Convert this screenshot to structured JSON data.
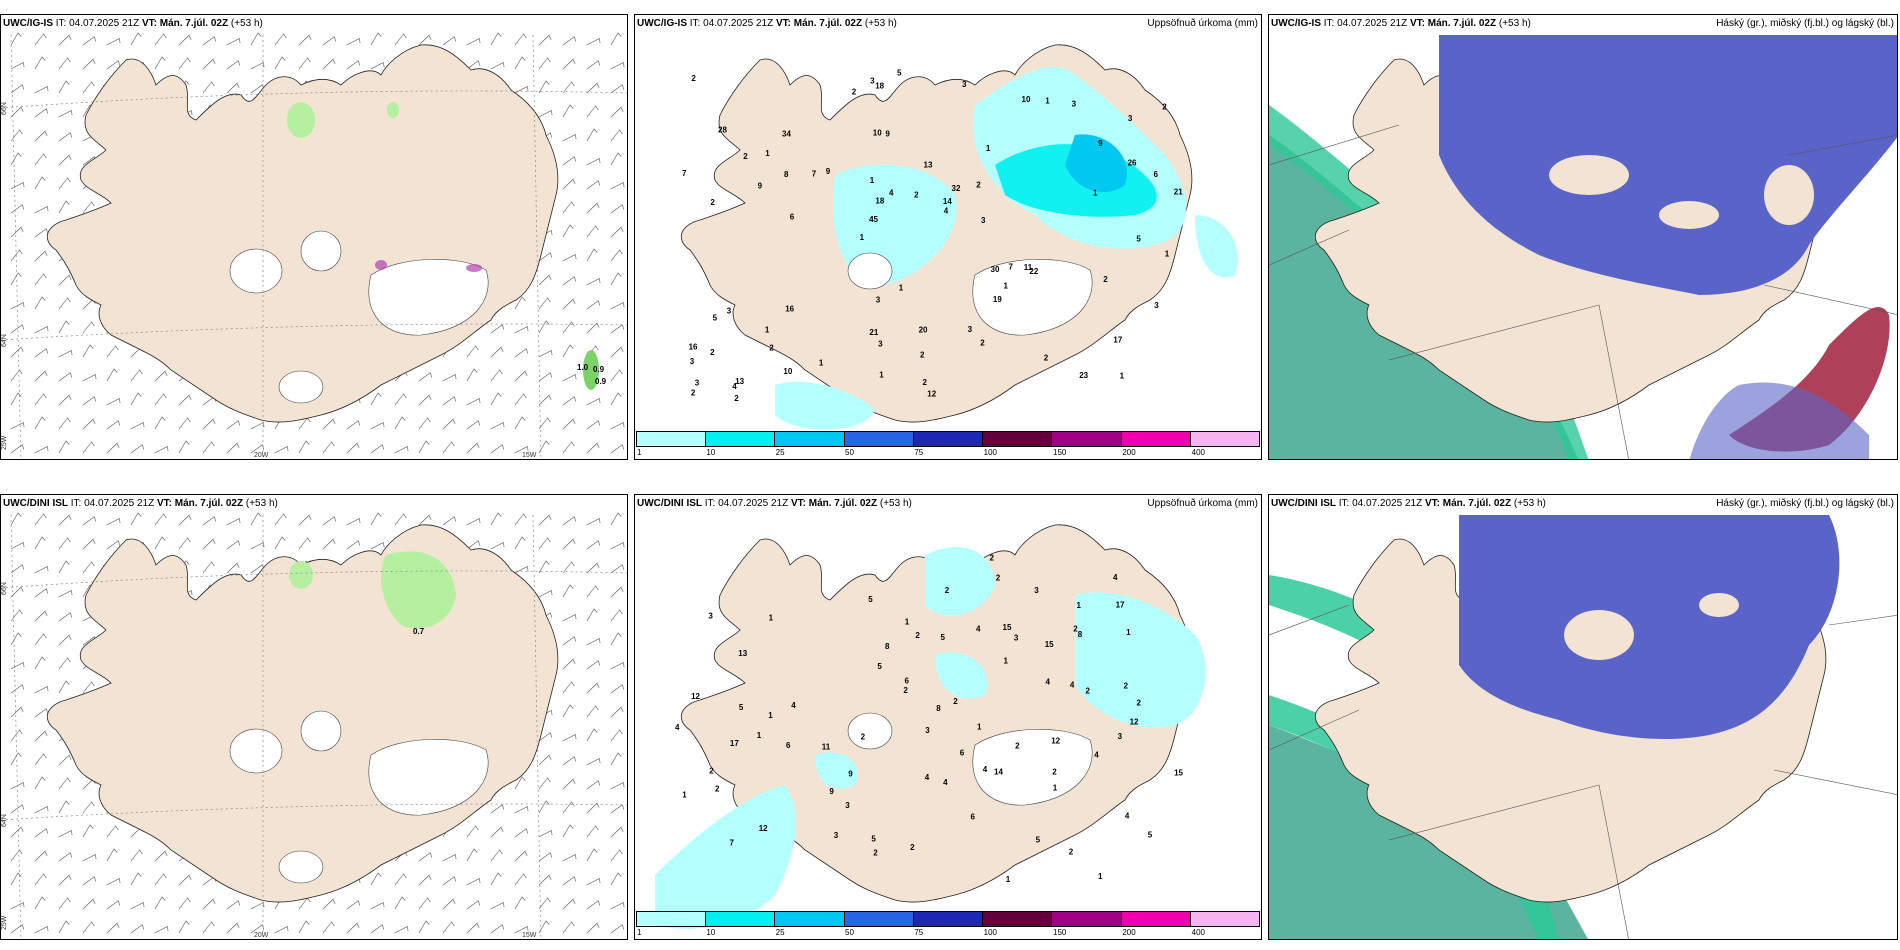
{
  "rows": [
    {
      "model": "UWC/IG-IS",
      "it_label": "IT:",
      "it_value": "04.07.2025 21Z",
      "vt_label": "VT:",
      "vt_value": "Mán. 7.júl. 02Z",
      "lead": "(+53 h)"
    },
    {
      "model": "UWC/DINI ISL",
      "it_label": "IT:",
      "it_value": "04.07.2025 21Z",
      "vt_label": "VT:",
      "vt_value": "Mán. 7.júl. 02Z",
      "lead": "(+53 h)"
    }
  ],
  "precip_title": "Uppsöfnuð úrkoma (mm)",
  "cloud_title": "Háský (gr.), miðský (fj.bl.) og lágský (bl.)",
  "lat_labels": [
    "66N",
    "64N"
  ],
  "lon_labels": [
    "25W",
    "20W",
    "15W"
  ],
  "precip_legend": {
    "ticks": [
      "1",
      "10",
      "25",
      "50",
      "75",
      "100",
      "150",
      "200",
      "400"
    ],
    "colors": [
      "#b4ffff",
      "#00f0f0",
      "#00c8f0",
      "#2a64e6",
      "#1e28b4",
      "#64003c",
      "#a00082",
      "#f000aa",
      "#f5b4f0"
    ]
  },
  "colors": {
    "land": "#f2e3d3",
    "ice": "#ffffff",
    "snow_green": "#b4f0a0",
    "low_cloud": "#5a64c8",
    "mid_cloud": "#2dc896",
    "sea_cloud": "#5ab4a0",
    "high_red": "#a01e3c"
  },
  "panel1_values": {
    "ig": [
      "1.0",
      "0.9",
      "0.9"
    ],
    "dini": [
      "0.7"
    ]
  },
  "precip_numbers_ig": [
    "1",
    "2",
    "3",
    "1",
    "1",
    "13",
    "10",
    "13",
    "3",
    "9",
    "3",
    "2",
    "9",
    "32",
    "22",
    "28",
    "18",
    "21",
    "30",
    "26",
    "45",
    "21",
    "18",
    "34",
    "10",
    "16",
    "23",
    "17",
    "11",
    "12",
    "7",
    "9",
    "19",
    "10",
    "6",
    "14",
    "3",
    "3",
    "4",
    "5",
    "9",
    "2",
    "1",
    "2",
    "1",
    "2",
    "2",
    "20",
    "3",
    "5",
    "6",
    "7",
    "1",
    "1",
    "4",
    "3",
    "2",
    "4",
    "3",
    "3",
    "1",
    "7",
    "8",
    "16",
    "2",
    "2",
    "1",
    "1",
    "2",
    "2",
    "2",
    "3",
    "2",
    "1",
    "1",
    "1",
    "2",
    "2",
    "3",
    "3",
    "5",
    "2"
  ],
  "precip_numbers_dini": [
    "1",
    "1",
    "4",
    "3",
    "4",
    "13",
    "12",
    "11",
    "15",
    "2",
    "3",
    "2",
    "3",
    "5",
    "1",
    "2",
    "12",
    "8",
    "12",
    "7",
    "4",
    "5",
    "4",
    "15",
    "12",
    "5",
    "6",
    "3",
    "2",
    "17",
    "14",
    "17",
    "9",
    "15",
    "8",
    "4",
    "3",
    "5",
    "1",
    "1",
    "9",
    "4",
    "3",
    "2",
    "2",
    "1",
    "1",
    "2",
    "4",
    "4",
    "2",
    "2",
    "2",
    "2",
    "5",
    "4",
    "2",
    "6",
    "6",
    "4",
    "5",
    "2",
    "1",
    "2",
    "1",
    "2",
    "4",
    "2",
    "3",
    "8",
    "1",
    "2",
    "6",
    "5",
    "1",
    "2",
    "1"
  ]
}
